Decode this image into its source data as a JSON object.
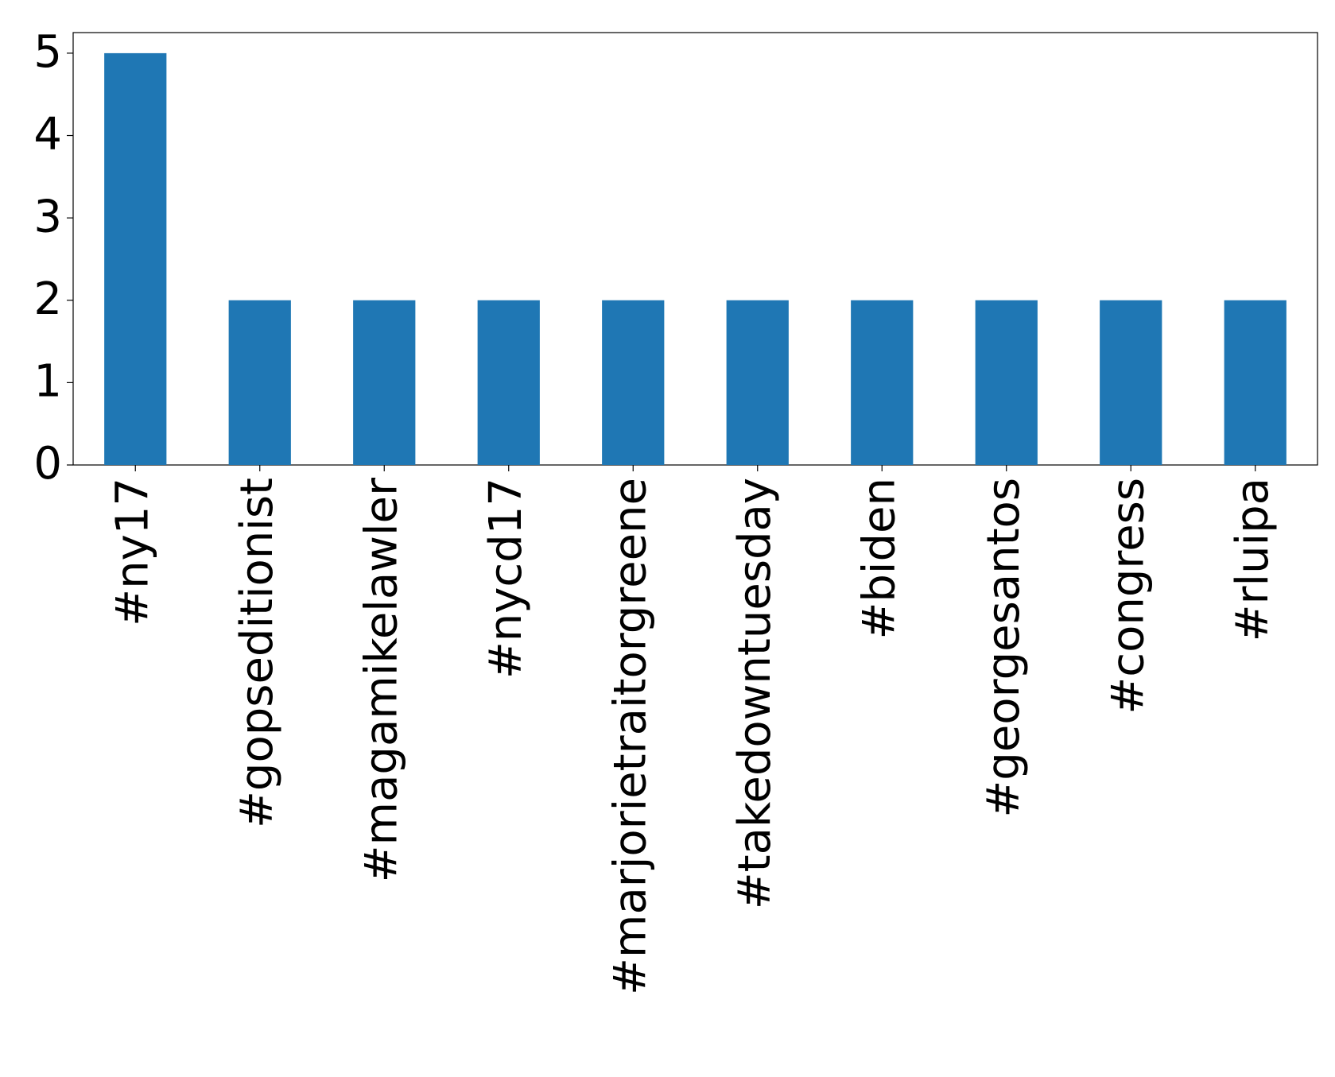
{
  "chart_data": {
    "type": "bar",
    "categories": [
      "#ny17",
      "#gopseditionist",
      "#magamikelawler",
      "#nycd17",
      "#marjorietraitorgreene",
      "#takedowntuesday",
      "#biden",
      "#georgesantos",
      "#congress",
      "#rluipa"
    ],
    "values": [
      5,
      2,
      2,
      2,
      2,
      2,
      2,
      2,
      2,
      2
    ],
    "color": "#1f77b4",
    "ylim": [
      0,
      5.25
    ],
    "yticks": [
      0,
      1,
      2,
      3,
      4,
      5
    ],
    "grid": false
  }
}
